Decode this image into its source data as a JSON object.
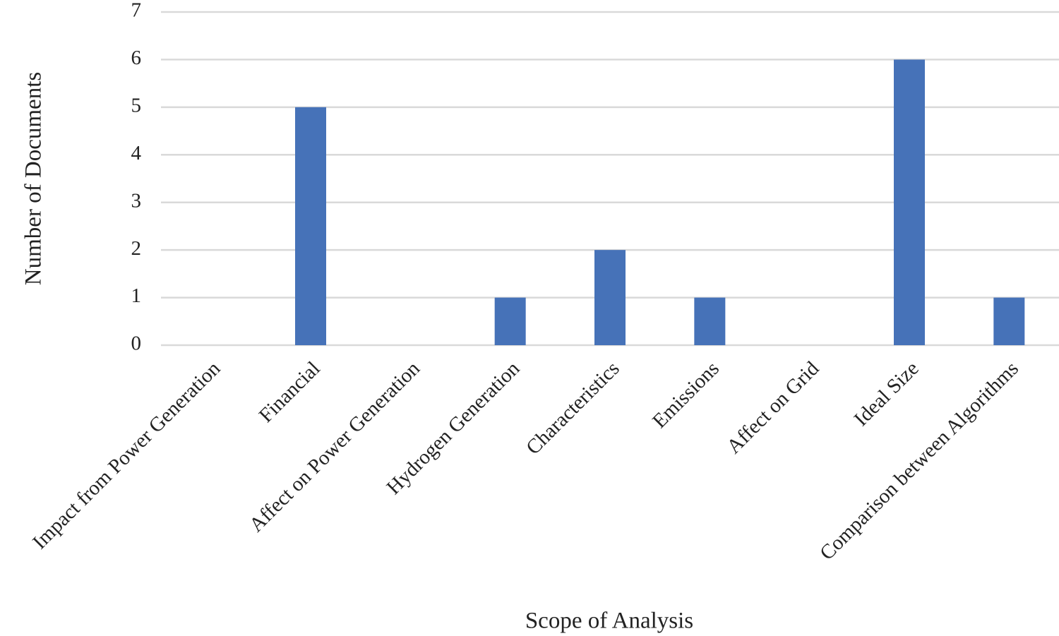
{
  "chart_data": {
    "type": "bar",
    "x_label": "Scope of Analysis",
    "y_label": "Number of Documents",
    "categories": [
      "Impact from Power Generation",
      "Financial",
      "Affect on Power Generation",
      "Hydrogen Generation",
      "Characteristics",
      "Emissions",
      "Affect on Grid",
      "Ideal Size",
      "Comparison between Algorithms"
    ],
    "values": [
      0,
      5,
      0,
      1,
      2,
      1,
      0,
      6,
      1
    ],
    "color": "#4672b8",
    "ylim": [
      0,
      7
    ],
    "yticks": [
      0,
      1,
      2,
      3,
      4,
      5,
      6,
      7
    ],
    "grid": true
  }
}
